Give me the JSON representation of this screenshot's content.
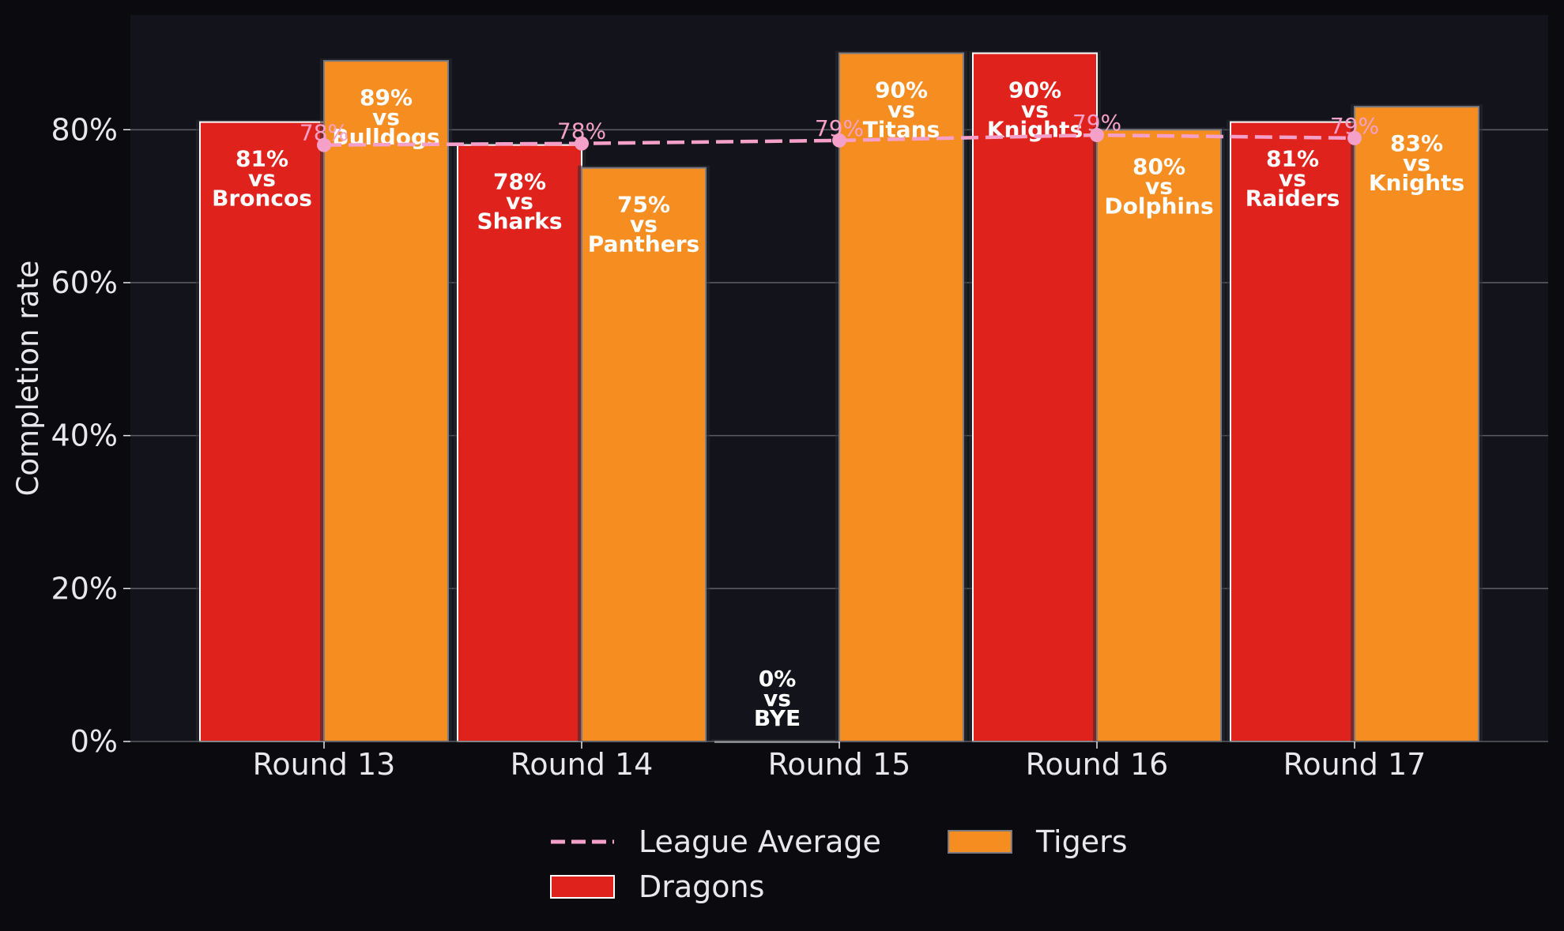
{
  "chart_data": {
    "type": "bar",
    "ylabel": "Completion rate",
    "ylim": [
      0,
      95
    ],
    "yticks": [
      0,
      20,
      40,
      60,
      80
    ],
    "ytick_labels": [
      "0%",
      "20%",
      "40%",
      "60%",
      "80%"
    ],
    "grid": true,
    "legend_position": "bottom-center",
    "colors": {
      "background": "#0b0b0f",
      "plot_background": "#13141b",
      "grid": "#5a5b63",
      "dragons": "#e0221d",
      "tigers": "#f58d21",
      "league_average": "#f5a0c8",
      "text": "#e8e8ec"
    },
    "categories": [
      "Round 13",
      "Round 14",
      "Round 15",
      "Round 16",
      "Round 17"
    ],
    "series": [
      {
        "name": "Dragons",
        "kind": "bar",
        "values": [
          81,
          78,
          0,
          90,
          81
        ],
        "opponents": [
          "Broncos",
          "Sharks",
          "BYE",
          "Knights",
          "Raiders"
        ],
        "labels": [
          [
            "81%",
            "vs",
            "Broncos"
          ],
          [
            "78%",
            "vs",
            "Sharks"
          ],
          [
            "0%",
            "vs",
            "BYE"
          ],
          [
            "90%",
            "vs",
            "Knights"
          ],
          [
            "81%",
            "vs",
            "Raiders"
          ]
        ]
      },
      {
        "name": "Tigers",
        "kind": "bar",
        "values": [
          89,
          75,
          90,
          80,
          83
        ],
        "opponents": [
          "Bulldogs",
          "Panthers",
          "Titans",
          "Dolphins",
          "Knights"
        ],
        "labels": [
          [
            "89%",
            "vs",
            "Bulldogs"
          ],
          [
            "75%",
            "vs",
            "Panthers"
          ],
          [
            "90%",
            "vs",
            "Titans"
          ],
          [
            "80%",
            "vs",
            "Dolphins"
          ],
          [
            "83%",
            "vs",
            "Knights"
          ]
        ]
      },
      {
        "name": "League Average",
        "kind": "line",
        "values": [
          78,
          78.2,
          78.6,
          79.3,
          78.9
        ],
        "labels": [
          "78%",
          "78%",
          "79%",
          "79%",
          "79%"
        ]
      }
    ],
    "legend": [
      {
        "name": "League Average",
        "kind": "line"
      },
      {
        "name": "Dragons",
        "kind": "bar"
      },
      {
        "name": "Tigers",
        "kind": "bar"
      }
    ]
  }
}
